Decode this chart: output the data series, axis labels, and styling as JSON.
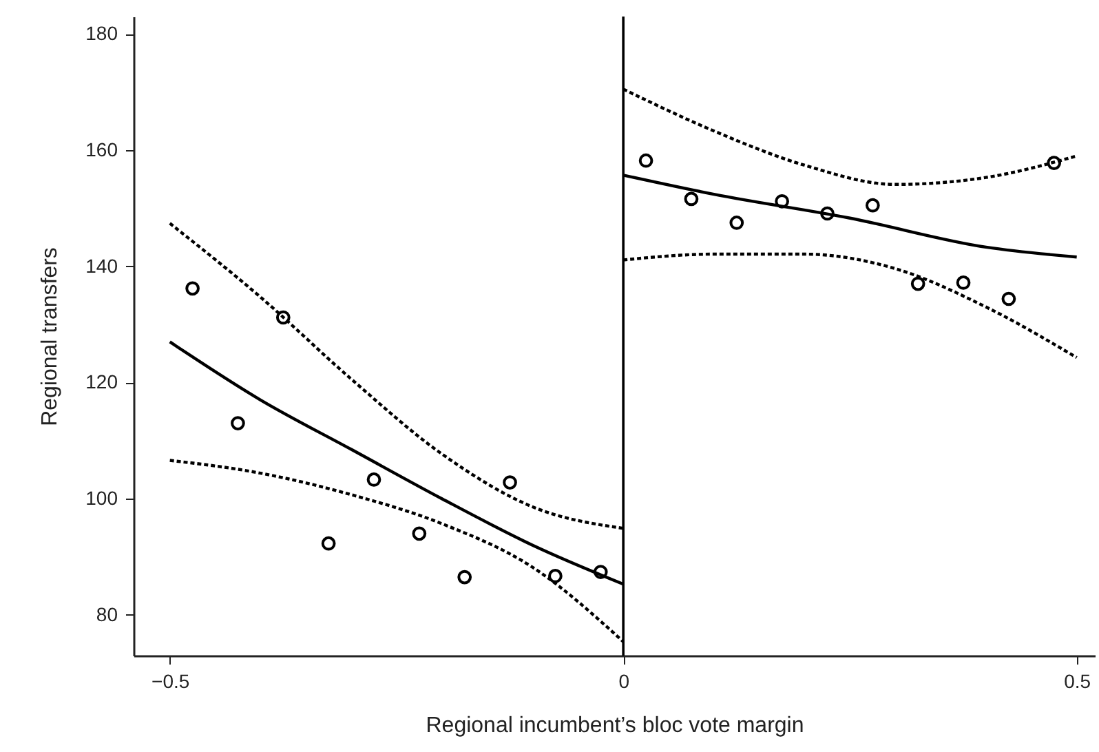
{
  "chart_data": {
    "type": "scatter",
    "xlabel": "Regional incumbent’s bloc vote margin",
    "ylabel": "Regional transfers",
    "xlim": [
      -0.54,
      0.52
    ],
    "ylim": [
      73,
      183
    ],
    "xticks": [
      {
        "value": -0.5,
        "label": "−0.5"
      },
      0,
      0.5
    ],
    "yticks": [
      80,
      100,
      120,
      140,
      160,
      180
    ],
    "grid": false,
    "marker": "circle",
    "ref_lines": [
      {
        "axis": "x",
        "value": 0,
        "color": "#000000"
      }
    ],
    "series": [
      {
        "color": "#000000",
        "x": [
          -0.475,
          -0.425,
          -0.375,
          -0.325,
          -0.275,
          -0.225,
          -0.175,
          -0.125,
          -0.075,
          -0.025,
          0.025,
          0.075,
          0.125,
          0.175,
          0.225,
          0.275,
          0.325,
          0.375,
          0.425,
          0.475
        ],
        "values": [
          136.2,
          113,
          131.2,
          92.3,
          103.3,
          94,
          86.5,
          102.8,
          86.7,
          87.4,
          158.2,
          151.6,
          147.5,
          151.2,
          149.1,
          150.5,
          137,
          137.2,
          134.4,
          157.8
        ]
      },
      {
        "type": "line",
        "color": "#000000",
        "line_style": "solid",
        "marker": "none",
        "x": [
          -0.5,
          -0.4,
          -0.3,
          -0.2,
          -0.1,
          0
        ],
        "values": [
          127,
          117,
          108.5,
          100,
          92,
          85.3
        ]
      },
      {
        "type": "line",
        "color": "#000000",
        "line_style": "dashed",
        "marker": "none",
        "x": [
          -0.5,
          -0.4,
          -0.3,
          -0.2,
          -0.1,
          0
        ],
        "values": [
          147.4,
          134.7,
          120.6,
          107.7,
          98.6,
          94.9
        ]
      },
      {
        "type": "line",
        "color": "#000000",
        "line_style": "dashed",
        "marker": "none",
        "x": [
          -0.5,
          -0.4,
          -0.3,
          -0.2,
          -0.1,
          0
        ],
        "values": [
          106.6,
          104.4,
          100.7,
          95.7,
          88.2,
          75.4
        ]
      },
      {
        "type": "line",
        "color": "#000000",
        "line_style": "solid",
        "marker": "none",
        "x": [
          0,
          0.1,
          0.25,
          0.4,
          0.5
        ],
        "values": [
          155.7,
          152.4,
          148.3,
          143.3,
          141.6
        ]
      },
      {
        "type": "line",
        "color": "#000000",
        "line_style": "dashed",
        "marker": "none",
        "x": [
          0,
          0.1,
          0.2,
          0.3,
          0.4,
          0.5
        ],
        "values": [
          170.5,
          163.3,
          157.4,
          154.1,
          155.3,
          159
        ]
      },
      {
        "type": "line",
        "color": "#000000",
        "line_style": "dashed",
        "marker": "none",
        "x": [
          0,
          0.1,
          0.2,
          0.3,
          0.4,
          0.5
        ],
        "values": [
          141.1,
          142.1,
          142.1,
          139.6,
          133,
          124.3
        ]
      }
    ]
  }
}
